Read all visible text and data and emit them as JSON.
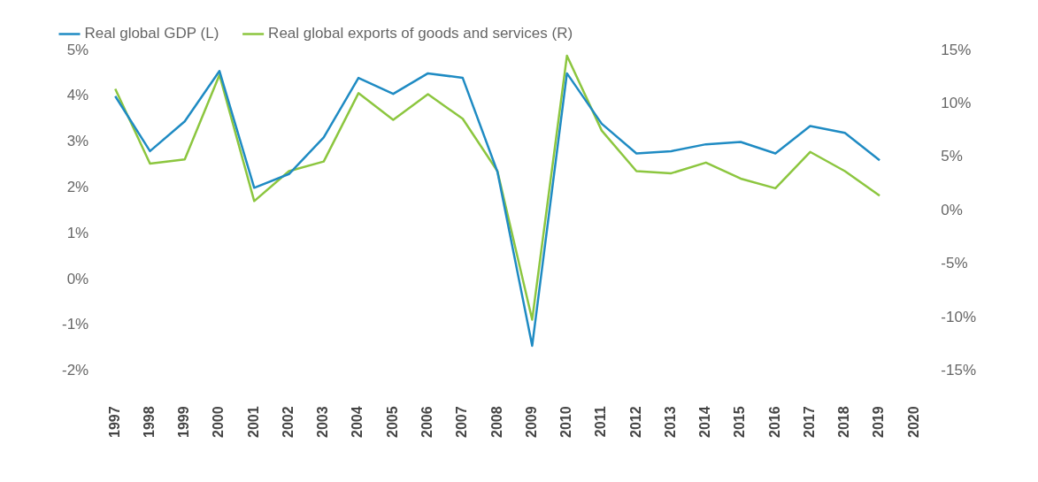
{
  "chart_data": {
    "type": "line",
    "legend": "top left",
    "categories": [
      "1997",
      "1998",
      "1999",
      "2000",
      "2001",
      "2002",
      "2003",
      "2004",
      "2005",
      "2006",
      "2007",
      "2008",
      "2009",
      "2010",
      "2011",
      "2012",
      "2013",
      "2014",
      "2015",
      "2016",
      "2017",
      "2018",
      "2019",
      "2020"
    ],
    "series": [
      {
        "name": "Real global GDP (L)",
        "color": "#1f8bc3",
        "values": [
          4.0,
          2.8,
          3.45,
          4.55,
          2.0,
          2.3,
          3.1,
          4.4,
          4.05,
          4.5,
          4.4,
          2.35,
          -1.45,
          4.5,
          3.4,
          2.75,
          2.8,
          2.95,
          3.0,
          2.75,
          3.35,
          3.2,
          2.6,
          null
        ]
      },
      {
        "name": "Real global exports of goods and services (R)",
        "color": "#8cc63f",
        "axis": "y2",
        "values": [
          11.4,
          4.4,
          4.8,
          12.7,
          0.9,
          3.7,
          4.6,
          11.0,
          8.5,
          10.9,
          8.6,
          3.7,
          -10.2,
          14.5,
          7.5,
          3.7,
          3.5,
          4.5,
          3.0,
          2.1,
          5.5,
          3.7,
          1.4,
          null
        ]
      }
    ],
    "ylim": [
      -2,
      5
    ],
    "yticks": [
      {
        "value": -2,
        "label": "-2%"
      },
      {
        "value": -1,
        "label": "-1%"
      },
      {
        "value": 0,
        "label": "0%"
      },
      {
        "value": 1,
        "label": "1%"
      },
      {
        "value": 2,
        "label": "2%"
      },
      {
        "value": 3,
        "label": "3%"
      },
      {
        "value": 4,
        "label": "4%"
      },
      {
        "value": 5,
        "label": "5%"
      }
    ],
    "y2lim": [
      -15,
      15
    ],
    "y2ticks": [
      {
        "value": -15,
        "label": "-15%"
      },
      {
        "value": -10,
        "label": "-10%"
      },
      {
        "value": -5,
        "label": "-5%"
      },
      {
        "value": 0,
        "label": "0%"
      },
      {
        "value": 5,
        "label": "5%"
      },
      {
        "value": 10,
        "label": "10%"
      },
      {
        "value": 15,
        "label": "15%"
      }
    ]
  }
}
